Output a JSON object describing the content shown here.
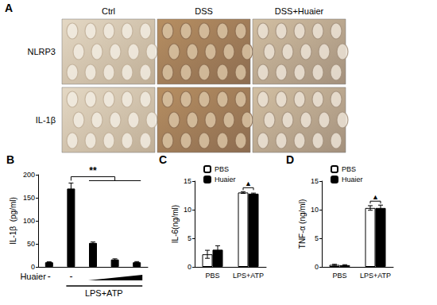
{
  "images": {
    "title": "A",
    "columns": [
      "Ctrl",
      "DSS",
      "DSS+Huaier"
    ],
    "rows": [
      "NLRP3",
      "IL-1β"
    ]
  },
  "chart_data": [
    {
      "type": "bar",
      "title": "B",
      "y_label": "IL-1β  (pg/ml)",
      "categories": [
        "-",
        "-",
        null,
        null,
        null
      ],
      "values": [
        10,
        170,
        52,
        16,
        10
      ],
      "errors": [
        1,
        12,
        2,
        1.5,
        1.5
      ],
      "color": "#000000",
      "ylim": [
        0,
        200
      ],
      "yticks": [
        0,
        50,
        100,
        150,
        200
      ],
      "grid": false,
      "x_label": "Huaier",
      "group_label": "LPS+ATP",
      "annotation": "**"
    },
    {
      "type": "bar",
      "title": "C",
      "y_label": "IL-6(ng/ml)",
      "categories": [
        "PBS",
        "LPS+ATP"
      ],
      "series": [
        {
          "name": "PBS",
          "color": "#ffffff",
          "values": [
            2.2,
            13.0
          ],
          "errors": [
            0.7,
            0.15
          ]
        },
        {
          "name": "Huaier",
          "color": "#000000",
          "values": [
            3.0,
            12.8
          ],
          "errors": [
            0.7,
            0.1
          ]
        }
      ],
      "ylim": [
        0,
        15
      ],
      "yticks": [
        0,
        5,
        10,
        15
      ],
      "grid": false,
      "legend": "upper left",
      "annotation": "▲"
    },
    {
      "type": "bar",
      "title": "D",
      "y_label": "TNF-α (ng/ml)",
      "categories": [
        "PBS",
        "LPS+ATP"
      ],
      "series": [
        {
          "name": "PBS",
          "color": "#ffffff",
          "values": [
            0.35,
            10.3
          ],
          "errors": [
            0.1,
            0.4
          ]
        },
        {
          "name": "Huaier",
          "color": "#000000",
          "values": [
            0.3,
            10.3
          ],
          "errors": [
            0.08,
            0.5
          ]
        }
      ],
      "ylim": [
        0,
        15
      ],
      "yticks": [
        0,
        5,
        10,
        15
      ],
      "grid": false,
      "legend": "upper left",
      "annotation": "▲"
    }
  ]
}
